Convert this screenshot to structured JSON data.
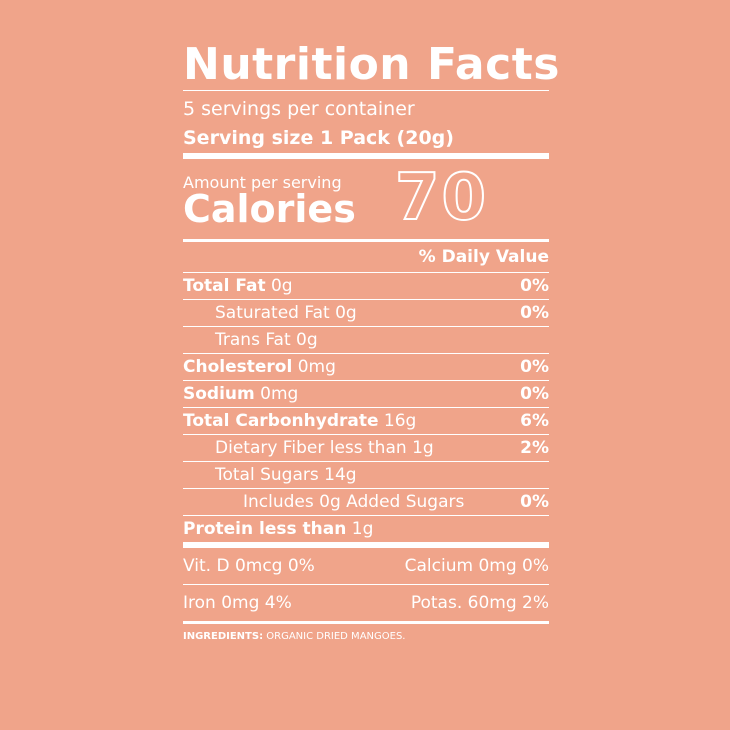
{
  "title": "Nutrition Facts",
  "servings_per_container": "5 servings per container",
  "serving_size": "Serving size 1 Pack (20g)",
  "amount_per_serving": "Amount per serving",
  "calories_label": "Calories",
  "calories_value": "70",
  "daily_value_header": "% Daily Value",
  "nutrients": [
    {
      "name": "Total Fat",
      "amount": "0g",
      "dv": "0%"
    },
    {
      "name": "Saturated Fat",
      "amount": "0g",
      "dv": "0%"
    },
    {
      "name": "Trans Fat",
      "amount": "0g",
      "dv": ""
    },
    {
      "name": "Cholesterol",
      "amount": "0mg",
      "dv": "0%"
    },
    {
      "name": "Sodium",
      "amount": "0mg",
      "dv": "0%"
    },
    {
      "name": "Total Carbonhydrate",
      "amount": "16g",
      "dv": "6%"
    },
    {
      "name": "Dietary Fiber less than",
      "amount": "1g",
      "dv": "2%"
    },
    {
      "name": "Total Sugars",
      "amount": "14g",
      "dv": ""
    },
    {
      "name": "Includes 0g Added Sugars",
      "amount": "",
      "dv": "0%"
    },
    {
      "name": "Protein less than",
      "amount": "1g",
      "dv": ""
    }
  ],
  "vitamins": {
    "vit_d": "Vit. D 0mcg 0%",
    "calcium": "Calcium 0mg 0%",
    "iron": "Iron 0mg 4%",
    "potassium": "Potas. 60mg 2%"
  },
  "ingredients": {
    "label": "INGREDIENTS:",
    "text": "ORGANIC DRIED MANGOES."
  },
  "colors": {
    "background": "#f0a48a",
    "text": "#ffffff"
  }
}
